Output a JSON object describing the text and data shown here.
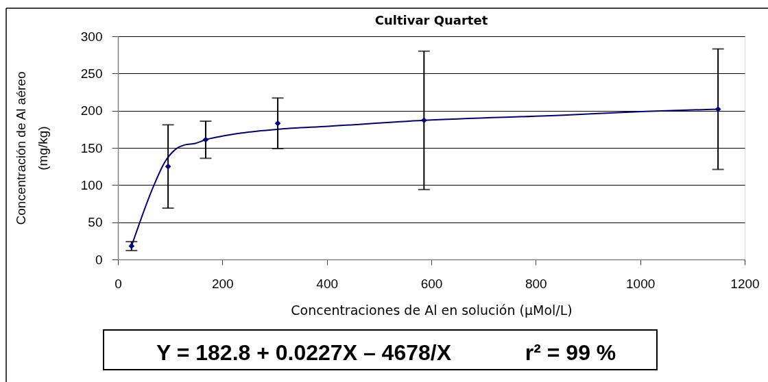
{
  "chart_data": {
    "type": "scatter",
    "title": "Cultivar Quartet",
    "xlabel": "Concentraciones de Al en solución (μMol/L)",
    "ylabel": "Concentración de Al aéreo\n(mg/kg)",
    "annotations": [
      "Y = 182.8 + 0.0227X – 4678/X",
      "r² = 99 %"
    ],
    "series": [
      {
        "color": "#000080",
        "marker": "diamond",
        "x": [
          26,
          96,
          168,
          306,
          586,
          1149
        ],
        "values": [
          18,
          125,
          161,
          183,
          187,
          202
        ],
        "errors": [
          6,
          56,
          25,
          34,
          93,
          81
        ]
      },
      {
        "type": "line",
        "color": "#000080",
        "marker": "none",
        "line_style": "solid",
        "x": [
          26,
          69,
          89,
          112,
          128,
          148,
          168,
          194,
          237,
          306,
          403,
          586,
          853,
          1010,
          1149
        ],
        "values": [
          18,
          100,
          130,
          149,
          154,
          156,
          161,
          165,
          170,
          175,
          179,
          187,
          194,
          199,
          202
        ]
      }
    ],
    "xlim": [
      0,
      1200
    ],
    "xticks": [
      0,
      200,
      400,
      600,
      800,
      1000,
      1200
    ],
    "ylim": [
      0,
      300
    ],
    "yticks": [
      0,
      50,
      100,
      150,
      200,
      250,
      300
    ],
    "grid": "y"
  }
}
